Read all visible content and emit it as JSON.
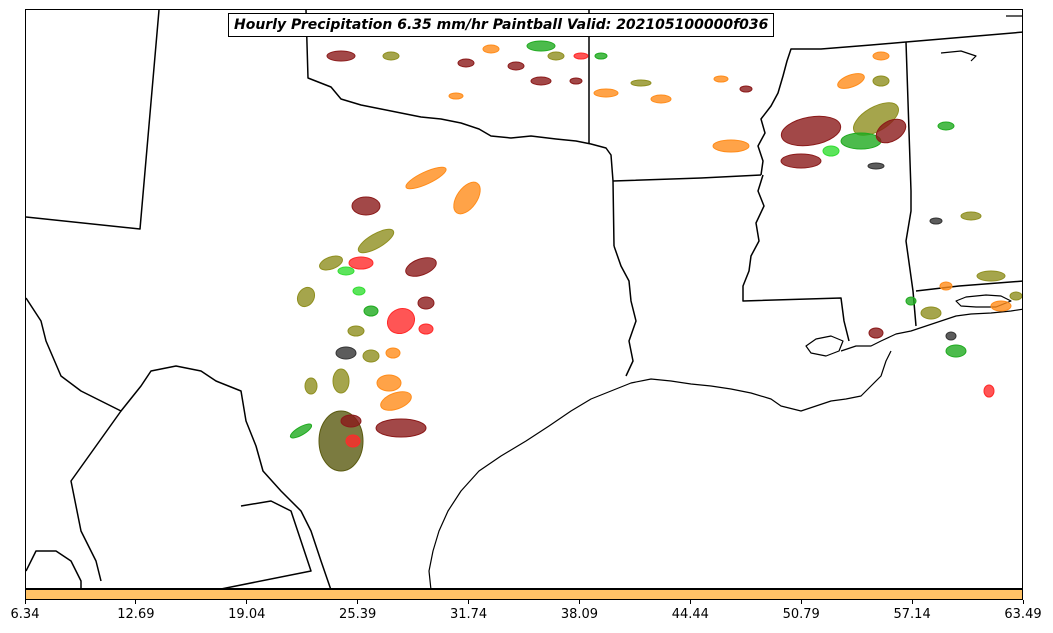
{
  "title": "Hourly Precipitation 6.35 mm/hr Paintball Valid: 202105100000f036",
  "colorbar": {
    "color": "#ffc266",
    "ticks": [
      "6.34",
      "12.69",
      "19.04",
      "25.39",
      "31.74",
      "38.09",
      "44.44",
      "50.79",
      "57.14",
      "63.49"
    ]
  },
  "palette": {
    "maroon": "#8b1a1a",
    "olive": "#8f8f1f",
    "green": "#1faa1f",
    "lime": "#33dd33",
    "orange": "#ff8c1a",
    "red": "#ff2a2a",
    "dark-gray": "#333333",
    "dark-olive": "#5a5a10",
    "light-orange": "#ff9f40"
  }
}
